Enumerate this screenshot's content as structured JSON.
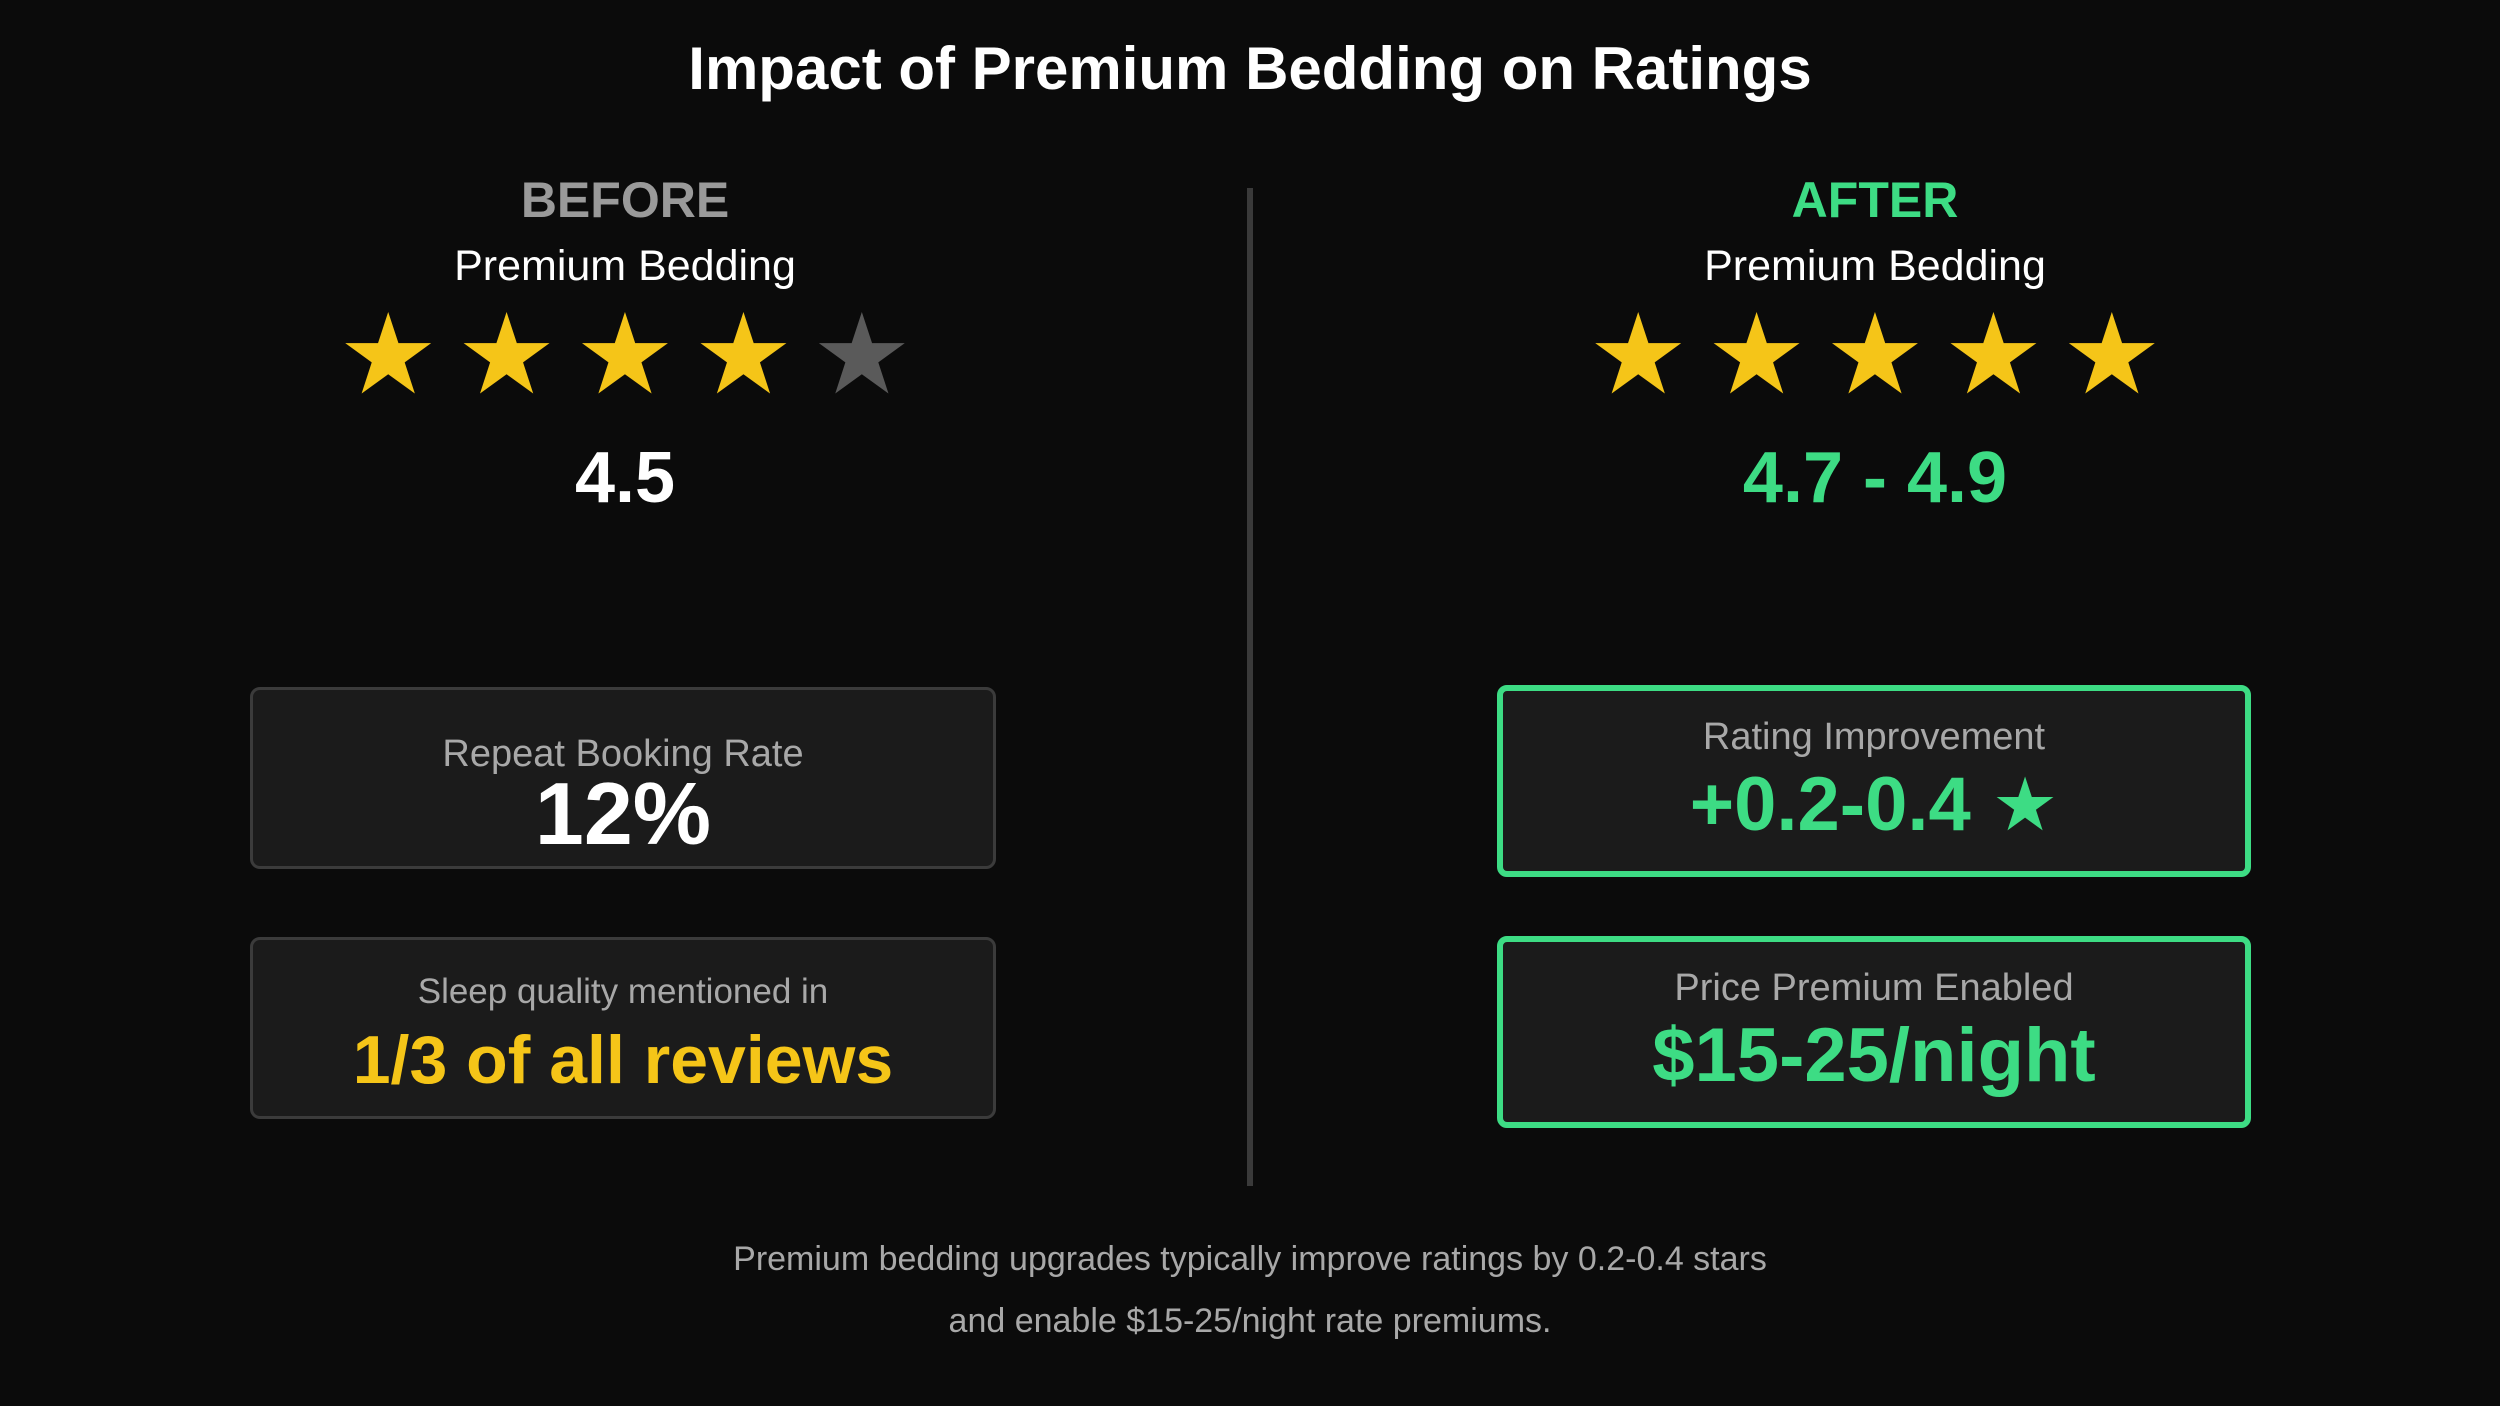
{
  "title": "Impact of Premium Bedding on Ratings",
  "before": {
    "phase": "BEFORE",
    "subject": "Premium Bedding",
    "stars_filled": 4,
    "stars_total": 5,
    "rating": "4.5"
  },
  "after": {
    "phase": "AFTER",
    "subject": "Premium Bedding",
    "stars_filled": 5,
    "stars_total": 5,
    "rating": "4.7 - 4.9"
  },
  "cards": {
    "repeat_booking": {
      "label": "Repeat Booking Rate",
      "value": "12%"
    },
    "sleep_quality": {
      "label": "Sleep quality mentioned in",
      "value": "1/3 of all reviews"
    },
    "rating_improvement": {
      "label": "Rating Improvement",
      "value": "+0.2-0.4",
      "icon": "star-icon"
    },
    "price_premium": {
      "label": "Price Premium Enabled",
      "value": "$15-25/night"
    }
  },
  "footer": {
    "line1": "Premium bedding upgrades typically improve ratings by 0.2-0.4 stars",
    "line2": "and enable $15-25/night rate premiums."
  },
  "colors": {
    "background": "#0b0b0b",
    "star_filled": "#f5c518",
    "star_empty": "#5a5a5a",
    "accent_green": "#3ddc84",
    "muted_text": "#a8a8a8"
  }
}
